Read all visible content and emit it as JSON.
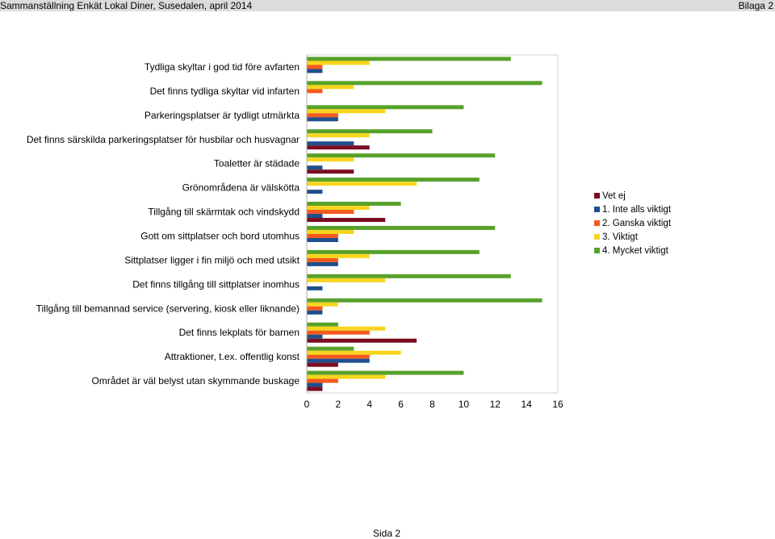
{
  "header": {
    "title": "Sammanställning Enkät Lokal Diner, Susedalen, april 2014",
    "appendix": "Bilaga 2"
  },
  "footer": {
    "page": "Sida 2"
  },
  "chart_data": {
    "type": "bar",
    "orientation": "horizontal",
    "categories": [
      "Tydliga skyltar i god tid före avfarten",
      "Det finns tydliga skyltar vid infarten",
      "Parkeringsplatser är tydligt utmärkta",
      "Det finns särskilda parkeringsplatser för husbilar och husvagnar",
      "Toaletter är städade",
      "Grönområdena är välskötta",
      "Tillgång till skärmtak och vindskydd",
      "Gott om sittplatser och bord utomhus",
      "Sittplatser ligger i fin miljö och med utsikt",
      "Det finns tillgång till sittplatser inomhus",
      "Tillgång till bemannad service  (servering, kiosk eller liknande)",
      "Det finns lekplats för barnen",
      "Attraktioner, t.ex. offentlig konst",
      "Området är väl belyst utan skymmande buskage"
    ],
    "series": [
      {
        "name": "Vet ej",
        "color": "#7b0c21",
        "values": [
          0,
          0,
          0,
          4,
          3,
          0,
          5,
          0,
          0,
          0,
          0,
          7,
          2,
          1
        ]
      },
      {
        "name": "1. Inte alls viktigt",
        "color": "#1e4f8c",
        "values": [
          1,
          0,
          2,
          3,
          1,
          1,
          1,
          2,
          2,
          1,
          1,
          1,
          4,
          1
        ]
      },
      {
        "name": "2. Ganska viktigt",
        "color": "#f25a1e",
        "values": [
          1,
          1,
          2,
          0,
          0,
          0,
          3,
          2,
          2,
          0,
          1,
          4,
          4,
          2
        ]
      },
      {
        "name": "3. Viktigt",
        "color": "#f7d51e",
        "values": [
          4,
          3,
          5,
          4,
          3,
          7,
          4,
          3,
          4,
          5,
          2,
          5,
          6,
          5
        ]
      },
      {
        "name": "4. Mycket viktigt",
        "color": "#58a12b",
        "values": [
          13,
          15,
          10,
          8,
          12,
          11,
          6,
          12,
          11,
          13,
          15,
          2,
          3,
          10
        ]
      }
    ],
    "xlim": [
      0,
      16
    ],
    "xticks": [
      "0",
      "2",
      "4",
      "6",
      "8",
      "10",
      "12",
      "14",
      "16"
    ],
    "legend": {
      "position": "right",
      "order": [
        0,
        1,
        2,
        3,
        4
      ]
    },
    "grid": false
  }
}
